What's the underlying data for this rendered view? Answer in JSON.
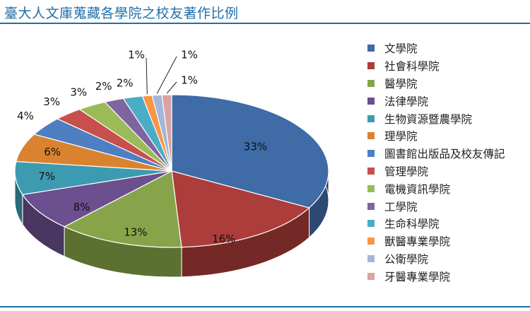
{
  "title": "臺大人文庫蒐藏各學院之校友著作比例",
  "chart_data": {
    "type": "pie",
    "style": "3d",
    "title": "",
    "legend_position": "right",
    "series": [
      {
        "name": "文學院",
        "value": 33,
        "label": "33%",
        "color": "#3f6ba6"
      },
      {
        "name": "社會科學院",
        "value": 16,
        "label": "16%",
        "color": "#ac3d3a"
      },
      {
        "name": "醫學院",
        "value": 13,
        "label": "13%",
        "color": "#87a44a"
      },
      {
        "name": "法律學院",
        "value": 8,
        "label": "8%",
        "color": "#6b4f8e"
      },
      {
        "name": "生物資源暨農學院",
        "value": 7,
        "label": "7%",
        "color": "#3c9bb0"
      },
      {
        "name": "理學院",
        "value": 6,
        "label": "6%",
        "color": "#d98331"
      },
      {
        "name": "圖書館出版品及校友傳記",
        "value": 4,
        "label": "4%",
        "color": "#4e7fc3"
      },
      {
        "name": "管理學院",
        "value": 3,
        "label": "3%",
        "color": "#c7504c"
      },
      {
        "name": "電機資訊學院",
        "value": 3,
        "label": "3%",
        "color": "#9bbb59"
      },
      {
        "name": "工學院",
        "value": 2,
        "label": "2%",
        "color": "#7f65a0"
      },
      {
        "name": "生命科學院",
        "value": 2,
        "label": "2%",
        "color": "#4bacc6"
      },
      {
        "name": "獸醫專業學院",
        "value": 1,
        "label": "1%",
        "color": "#f79646"
      },
      {
        "name": "公衛學院",
        "value": 1,
        "label": "1%",
        "color": "#a5b7d9"
      },
      {
        "name": "牙醫專業學院",
        "value": 1,
        "label": "1%",
        "color": "#d9a3a1"
      }
    ]
  }
}
